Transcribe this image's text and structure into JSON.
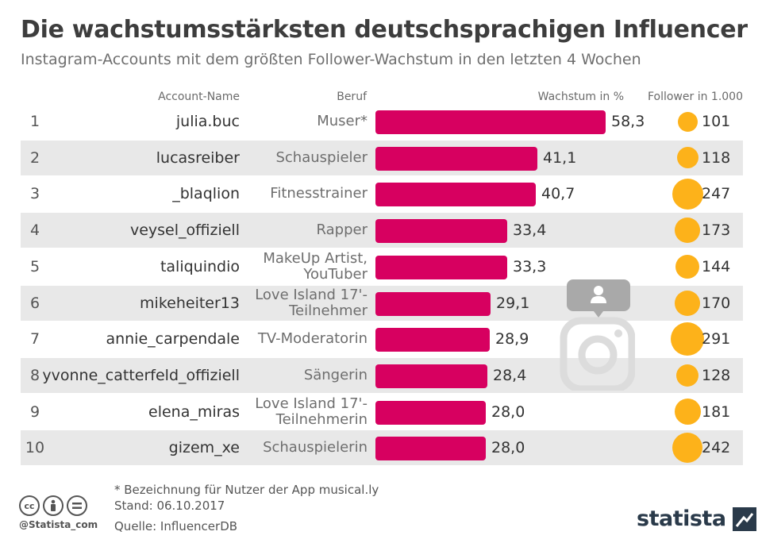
{
  "title": "Die wachstumsstärksten deutschsprachigen Influencer",
  "subtitle": "Instagram-Accounts mit dem größten Follower-Wachstum in den letzten 4 Wochen",
  "headers": {
    "account": "Account-Name",
    "job": "Beruf",
    "growth": "Wachstum in %",
    "followers": "Follower in 1.000"
  },
  "chart_data": {
    "type": "bar",
    "title": "Die wachstumsstärksten deutschsprachigen Influencer",
    "subtitle": "Instagram-Accounts mit dem größten Follower-Wachstum in den letzten 4 Wochen",
    "colors": {
      "bar": "#d70060",
      "bubble": "#fdb21a",
      "row_shade": "#e8e8e8"
    },
    "rows": [
      {
        "rank": "1",
        "account": "julia.buc",
        "job": "Muser*",
        "growth": 58.3,
        "growth_label": "58,3",
        "followers": 101,
        "followers_label": "101"
      },
      {
        "rank": "2",
        "account": "lucasreiber",
        "job": "Schauspieler",
        "growth": 41.1,
        "growth_label": "41,1",
        "followers": 118,
        "followers_label": "118"
      },
      {
        "rank": "3",
        "account": "_blaqlion",
        "job": "Fitnesstrainer",
        "growth": 40.7,
        "growth_label": "40,7",
        "followers": 247,
        "followers_label": "247"
      },
      {
        "rank": "4",
        "account": "veysel_offiziell",
        "job": "Rapper",
        "growth": 33.4,
        "growth_label": "33,4",
        "followers": 173,
        "followers_label": "173"
      },
      {
        "rank": "5",
        "account": "taliquindio",
        "job": "MakeUp Artist, YouTuber",
        "growth": 33.3,
        "growth_label": "33,3",
        "followers": 144,
        "followers_label": "144"
      },
      {
        "rank": "6",
        "account": "mikeheiter13",
        "job": "Love Island 17'-Teilnehmer",
        "growth": 29.1,
        "growth_label": "29,1",
        "followers": 170,
        "followers_label": "170"
      },
      {
        "rank": "7",
        "account": "annie_carpendale",
        "job": "TV-Moderatorin",
        "growth": 28.9,
        "growth_label": "28,9",
        "followers": 291,
        "followers_label": "291"
      },
      {
        "rank": "8",
        "account": "yvonne_catterfeld_offiziell",
        "job": "Sängerin",
        "growth": 28.4,
        "growth_label": "28,4",
        "followers": 128,
        "followers_label": "128"
      },
      {
        "rank": "9",
        "account": "elena_miras",
        "job": "Love Island 17'-Teilnehmerin",
        "growth": 28.0,
        "growth_label": "28,0",
        "followers": 181,
        "followers_label": "181"
      },
      {
        "rank": "10",
        "account": "gizem_xe",
        "job": "Schauspielerin",
        "growth": 28.0,
        "growth_label": "28,0",
        "followers": 242,
        "followers_label": "242"
      }
    ]
  },
  "watermark_icon": "instagram-icon",
  "footer": {
    "note": "* Bezeichnung für Nutzer der App musical.ly",
    "date": "Stand: 06.10.2017",
    "source": "Quelle: InfluencerDB",
    "handle": "@Statista_com",
    "brand": "statista",
    "license_icons": [
      "cc-icon",
      "by-icon",
      "nd-icon"
    ]
  }
}
